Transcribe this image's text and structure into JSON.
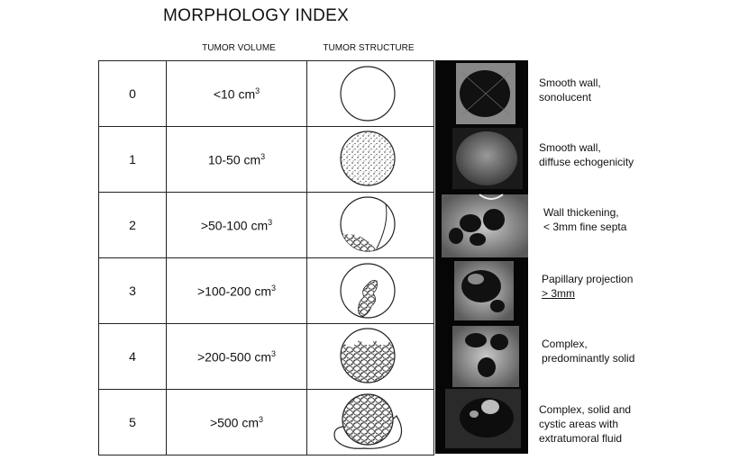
{
  "title": "MORPHOLOGY INDEX",
  "headers": {
    "volume": "TUMOR VOLUME",
    "structure": "TUMOR STRUCTURE"
  },
  "rows": [
    {
      "index": "0",
      "volume": "<10 cm",
      "unit_sup": "3",
      "structure": "sonolucent-circle-icon",
      "desc_line1": "Smooth wall,",
      "desc_line2": "sonolucent",
      "desc_line3": ""
    },
    {
      "index": "1",
      "volume": "10-50 cm",
      "unit_sup": "3",
      "structure": "stippled-circle-icon",
      "desc_line1": "Smooth wall,",
      "desc_line2": "diffuse echogenicity",
      "desc_line3": ""
    },
    {
      "index": "2",
      "volume": ">50-100 cm",
      "unit_sup": "3",
      "structure": "septated-circle-icon",
      "desc_line1": "Wall thickening,",
      "desc_line2": "< 3mm fine septa",
      "desc_line3": ""
    },
    {
      "index": "3",
      "volume": ">100-200 cm",
      "unit_sup": "3",
      "structure": "papillary-projection-icon",
      "desc_line1": "Papillary projection",
      "desc_line2": "> 3mm",
      "desc_line3": ""
    },
    {
      "index": "4",
      "volume": ">200-500 cm",
      "unit_sup": "3",
      "structure": "mostly-solid-circle-icon",
      "desc_line1": "Complex,",
      "desc_line2": "predominantly solid",
      "desc_line3": ""
    },
    {
      "index": "5",
      "volume": ">500 cm",
      "unit_sup": "3",
      "structure": "solid-cystic-fluid-icon",
      "desc_line1": "Complex, solid and",
      "desc_line2": "cystic areas with",
      "desc_line3": "extratumoral fluid"
    }
  ]
}
